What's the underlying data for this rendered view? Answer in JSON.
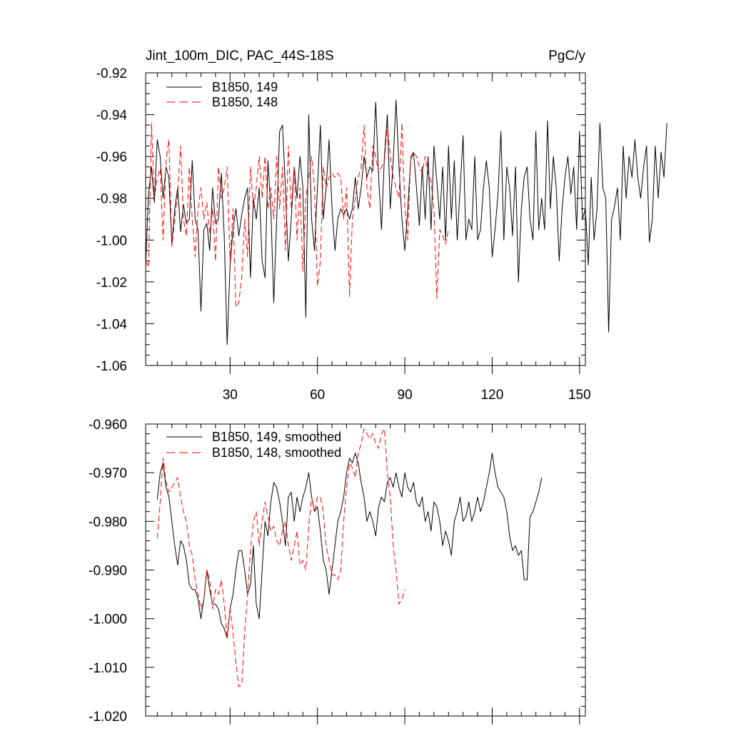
{
  "chart_data": [
    {
      "type": "line",
      "title_left": "Jint_100m_DIC, PAC_44S-18S",
      "title_right": "PgC/y",
      "xlim": [
        1,
        152
      ],
      "ylim": [
        -1.06,
        -0.92
      ],
      "xticks": [
        30,
        60,
        90,
        120,
        150
      ],
      "xtick_labels": [
        "30",
        "60",
        "90",
        "120",
        "150"
      ],
      "yticks": [
        -1.06,
        -1.04,
        -1.02,
        -1.0,
        -0.98,
        -0.96,
        -0.94,
        -0.92
      ],
      "ytick_labels": [
        "-1.06",
        "-1.04",
        "-1.02",
        "-1.00",
        "-0.98",
        "-0.96",
        "-0.94",
        "-0.92"
      ],
      "show_xtick_labels": true,
      "legend": "top-left",
      "series": [
        {
          "name": "B1850, 149",
          "color": "#000000",
          "dash": "solid",
          "x_start": 1,
          "values": [
            -1.012,
            -0.978,
            -0.965,
            -0.982,
            -0.952,
            -0.96,
            -0.98,
            -0.965,
            -0.97,
            -1.002,
            -0.985,
            -0.975,
            -0.996,
            -0.983,
            -0.992,
            -0.99,
            -0.962,
            -0.99,
            -0.995,
            -1.034,
            -0.995,
            -0.992,
            -1.005,
            -0.975,
            -0.992,
            -0.99,
            -0.968,
            -0.998,
            -1.05,
            -1.012,
            -0.995,
            -0.985,
            -0.998,
            -0.988,
            -0.98,
            -0.975,
            -1.018,
            -0.98,
            -0.99,
            -0.975,
            -1.01,
            -1.018,
            -0.962,
            -0.985,
            -1.03,
            -0.99,
            -0.948,
            -0.945,
            -0.975,
            -1.01,
            -0.99,
            -0.965,
            -0.98,
            -0.96,
            -0.975,
            -1.037,
            -0.94,
            -0.99,
            -1.005,
            -0.975,
            -0.945,
            -0.99,
            -0.975,
            -0.952,
            -0.985,
            -1.005,
            -0.99,
            -0.985,
            -0.988,
            -0.985,
            -0.99,
            -0.985,
            -0.97,
            -0.985,
            -0.975,
            -0.96,
            -0.97,
            -0.965,
            -0.967,
            -0.934,
            -0.97,
            -0.995,
            -0.96,
            -0.94,
            -0.985,
            -0.962,
            -0.933,
            -0.965,
            -0.99,
            -1.005,
            -0.985,
            -0.962,
            -0.958,
            -0.975,
            -0.993,
            -0.965,
            -0.99,
            -0.96,
            -0.995,
            -0.955,
            -0.972,
            -0.99,
            -0.965,
            -1.0,
            -0.955,
            -0.99,
            -0.962,
            -1.0,
            -0.975,
            -0.95,
            -1.0,
            -0.99,
            -0.995,
            -0.96,
            -1.0,
            -0.995,
            -0.975,
            -0.962,
            -0.975,
            -1.008,
            -0.995,
            -0.978,
            -0.948,
            -1.0,
            -0.965,
            -0.975,
            -0.998,
            -0.965,
            -1.02,
            -0.985,
            -0.97,
            -0.965,
            -0.99,
            -1.0,
            -0.948,
            -0.995,
            -0.98,
            -0.995,
            -0.943,
            -0.985,
            -0.96,
            -0.975,
            -1.01,
            -0.985,
            -0.97,
            -0.96,
            -0.978,
            -0.965,
            -0.995,
            -0.948,
            -0.99,
            -0.985,
            -1.012,
            -0.97,
            -1.0,
            -0.985,
            -0.944,
            -0.975,
            -0.98,
            -1.044,
            -0.99,
            -0.984,
            -0.975,
            -1.0,
            -0.955,
            -0.98,
            -0.96,
            -0.97,
            -0.952,
            -0.97,
            -0.98,
            -0.965,
            -0.955,
            -1.001,
            -0.99,
            -0.955,
            -0.98,
            -0.958,
            -0.97,
            -0.944
          ]
        },
        {
          "name": "B1850, 148",
          "color": "#ff0000",
          "dash": "dashed",
          "x_start": 1,
          "values": [
            -1.01,
            -1.013,
            -0.944,
            -0.98,
            -0.97,
            -0.966,
            -1.0,
            -0.962,
            -0.952,
            -1.003,
            -0.99,
            -0.978,
            -0.955,
            -0.99,
            -0.998,
            -0.965,
            -0.99,
            -1.008,
            -0.985,
            -0.975,
            -0.99,
            -0.982,
            -0.997,
            -0.985,
            -1.01,
            -0.965,
            -0.98,
            -0.975,
            -0.965,
            -1.01,
            -0.985,
            -1.032,
            -1.03,
            -1.018,
            -0.99,
            -1.008,
            -0.965,
            -0.985,
            -0.975,
            -0.96,
            -0.98,
            -0.96,
            -0.985,
            -0.975,
            -0.99,
            -0.96,
            -0.985,
            -0.965,
            -1.005,
            -0.955,
            -0.985,
            -0.965,
            -1.0,
            -0.975,
            -1.015,
            -0.98,
            -0.97,
            -0.96,
            -0.975,
            -1.022,
            -1.01,
            -0.965,
            -0.975,
            -0.97,
            -0.968,
            -0.97,
            -0.968,
            -0.97,
            -0.99,
            -0.975,
            -1.027,
            -0.99,
            -0.98,
            -0.97,
            -0.965,
            -0.945,
            -0.975,
            -0.985,
            -0.955,
            -0.96,
            -0.968,
            -0.965,
            -0.962,
            -0.945,
            -0.96,
            -0.97,
            -0.975,
            -0.98,
            -0.944,
            -0.985,
            -1.0,
            -0.96,
            -0.958,
            -0.96,
            -0.965,
            -0.968,
            -0.96,
            -0.968,
            -0.972,
            -0.985,
            -1.028,
            -0.995,
            -0.998,
            -1.002,
            -0.995
          ]
        }
      ]
    },
    {
      "type": "line",
      "xlim": [
        1,
        152
      ],
      "ylim": [
        -1.02,
        -0.96
      ],
      "xticks": [
        30,
        60,
        90,
        120,
        150
      ],
      "xtick_labels": [
        "30",
        "60",
        "90",
        "120",
        "150"
      ],
      "yticks": [
        -1.02,
        -1.01,
        -1.0,
        -0.99,
        -0.98,
        -0.97,
        -0.96
      ],
      "ytick_labels": [
        "-1.020",
        "-1.010",
        "-1.000",
        "-0.990",
        "-0.980",
        "-0.970",
        "-0.960"
      ],
      "show_xtick_labels": false,
      "legend": "top-left",
      "series": [
        {
          "name": "B1850, 149, smoothed",
          "color": "#000000",
          "dash": "solid",
          "x_start": 5,
          "values": [
            -0.9755,
            -0.97,
            -0.968,
            -0.973,
            -0.975,
            -0.98,
            -0.985,
            -0.989,
            -0.984,
            -0.985,
            -0.988,
            -0.993,
            -0.994,
            -0.994,
            -0.996,
            -1.0,
            -0.996,
            -0.99,
            -0.994,
            -0.997,
            -0.997,
            -0.998,
            -1.001,
            -1.002,
            -1.004,
            -0.998,
            -0.995,
            -0.99,
            -0.986,
            -0.986,
            -0.99,
            -0.995,
            -0.993,
            -0.985,
            -0.997,
            -1.0,
            -0.99,
            -0.98,
            -0.983,
            -0.976,
            -0.972,
            -0.973,
            -0.976,
            -0.98,
            -0.985,
            -0.975,
            -0.974,
            -0.98,
            -0.975,
            -0.978,
            -0.975,
            -0.973,
            -0.97,
            -0.975,
            -0.978,
            -0.977,
            -0.982,
            -0.988,
            -0.99,
            -0.995,
            -0.99,
            -0.985,
            -0.98,
            -0.978,
            -0.975,
            -0.97,
            -0.967,
            -0.968,
            -0.966,
            -0.968,
            -0.972,
            -0.975,
            -0.98,
            -0.978,
            -0.98,
            -0.983,
            -0.977,
            -0.975,
            -0.976,
            -0.972,
            -0.971,
            -0.973,
            -0.97,
            -0.973,
            -0.975,
            -0.97,
            -0.973,
            -0.974,
            -0.972,
            -0.976,
            -0.977,
            -0.975,
            -0.98,
            -0.978,
            -0.982,
            -0.976,
            -0.977,
            -0.98,
            -0.985,
            -0.982,
            -0.984,
            -0.987,
            -0.98,
            -0.978,
            -0.975,
            -0.98,
            -0.979,
            -0.976,
            -0.98,
            -0.978,
            -0.975,
            -0.978,
            -0.976,
            -0.973,
            -0.97,
            -0.966,
            -0.97,
            -0.973,
            -0.974,
            -0.975,
            -0.978,
            -0.983,
            -0.986,
            -0.985,
            -0.987,
            -0.986,
            -0.992,
            -0.992,
            -0.979,
            -0.978,
            -0.976,
            -0.974,
            -0.971
          ]
        },
        {
          "name": "B1850, 148, smoothed",
          "color": "#ff0000",
          "dash": "dashed",
          "x_start": 5,
          "values": [
            -0.9835,
            -0.976,
            -0.967,
            -0.972,
            -0.974,
            -0.973,
            -0.972,
            -0.971,
            -0.975,
            -0.978,
            -0.98,
            -0.985,
            -0.987,
            -0.992,
            -0.995,
            -0.998,
            -0.996,
            -0.99,
            -0.992,
            -0.998,
            -0.994,
            -0.995,
            -0.992,
            -0.997,
            -1.004,
            -0.998,
            -1.003,
            -1.009,
            -1.014,
            -1.0135,
            -1.003,
            -0.995,
            -0.986,
            -0.98,
            -0.978,
            -0.985,
            -0.98,
            -0.976,
            -0.979,
            -0.982,
            -0.981,
            -0.984,
            -0.985,
            -0.982,
            -0.98,
            -0.985,
            -0.988,
            -0.985,
            -0.982,
            -0.989,
            -0.988,
            -0.99,
            -0.981,
            -0.975,
            -0.978,
            -0.975,
            -0.975,
            -0.978,
            -0.985,
            -0.988,
            -0.991,
            -0.991,
            -0.992,
            -0.99,
            -0.98,
            -0.973,
            -0.968,
            -0.969,
            -0.971,
            -0.966,
            -0.964,
            -0.961,
            -0.962,
            -0.963,
            -0.962,
            -0.964,
            -0.965,
            -0.962,
            -0.961,
            -0.97,
            -0.975,
            -0.985,
            -0.99,
            -0.997,
            -0.996,
            -0.994
          ]
        }
      ]
    }
  ]
}
